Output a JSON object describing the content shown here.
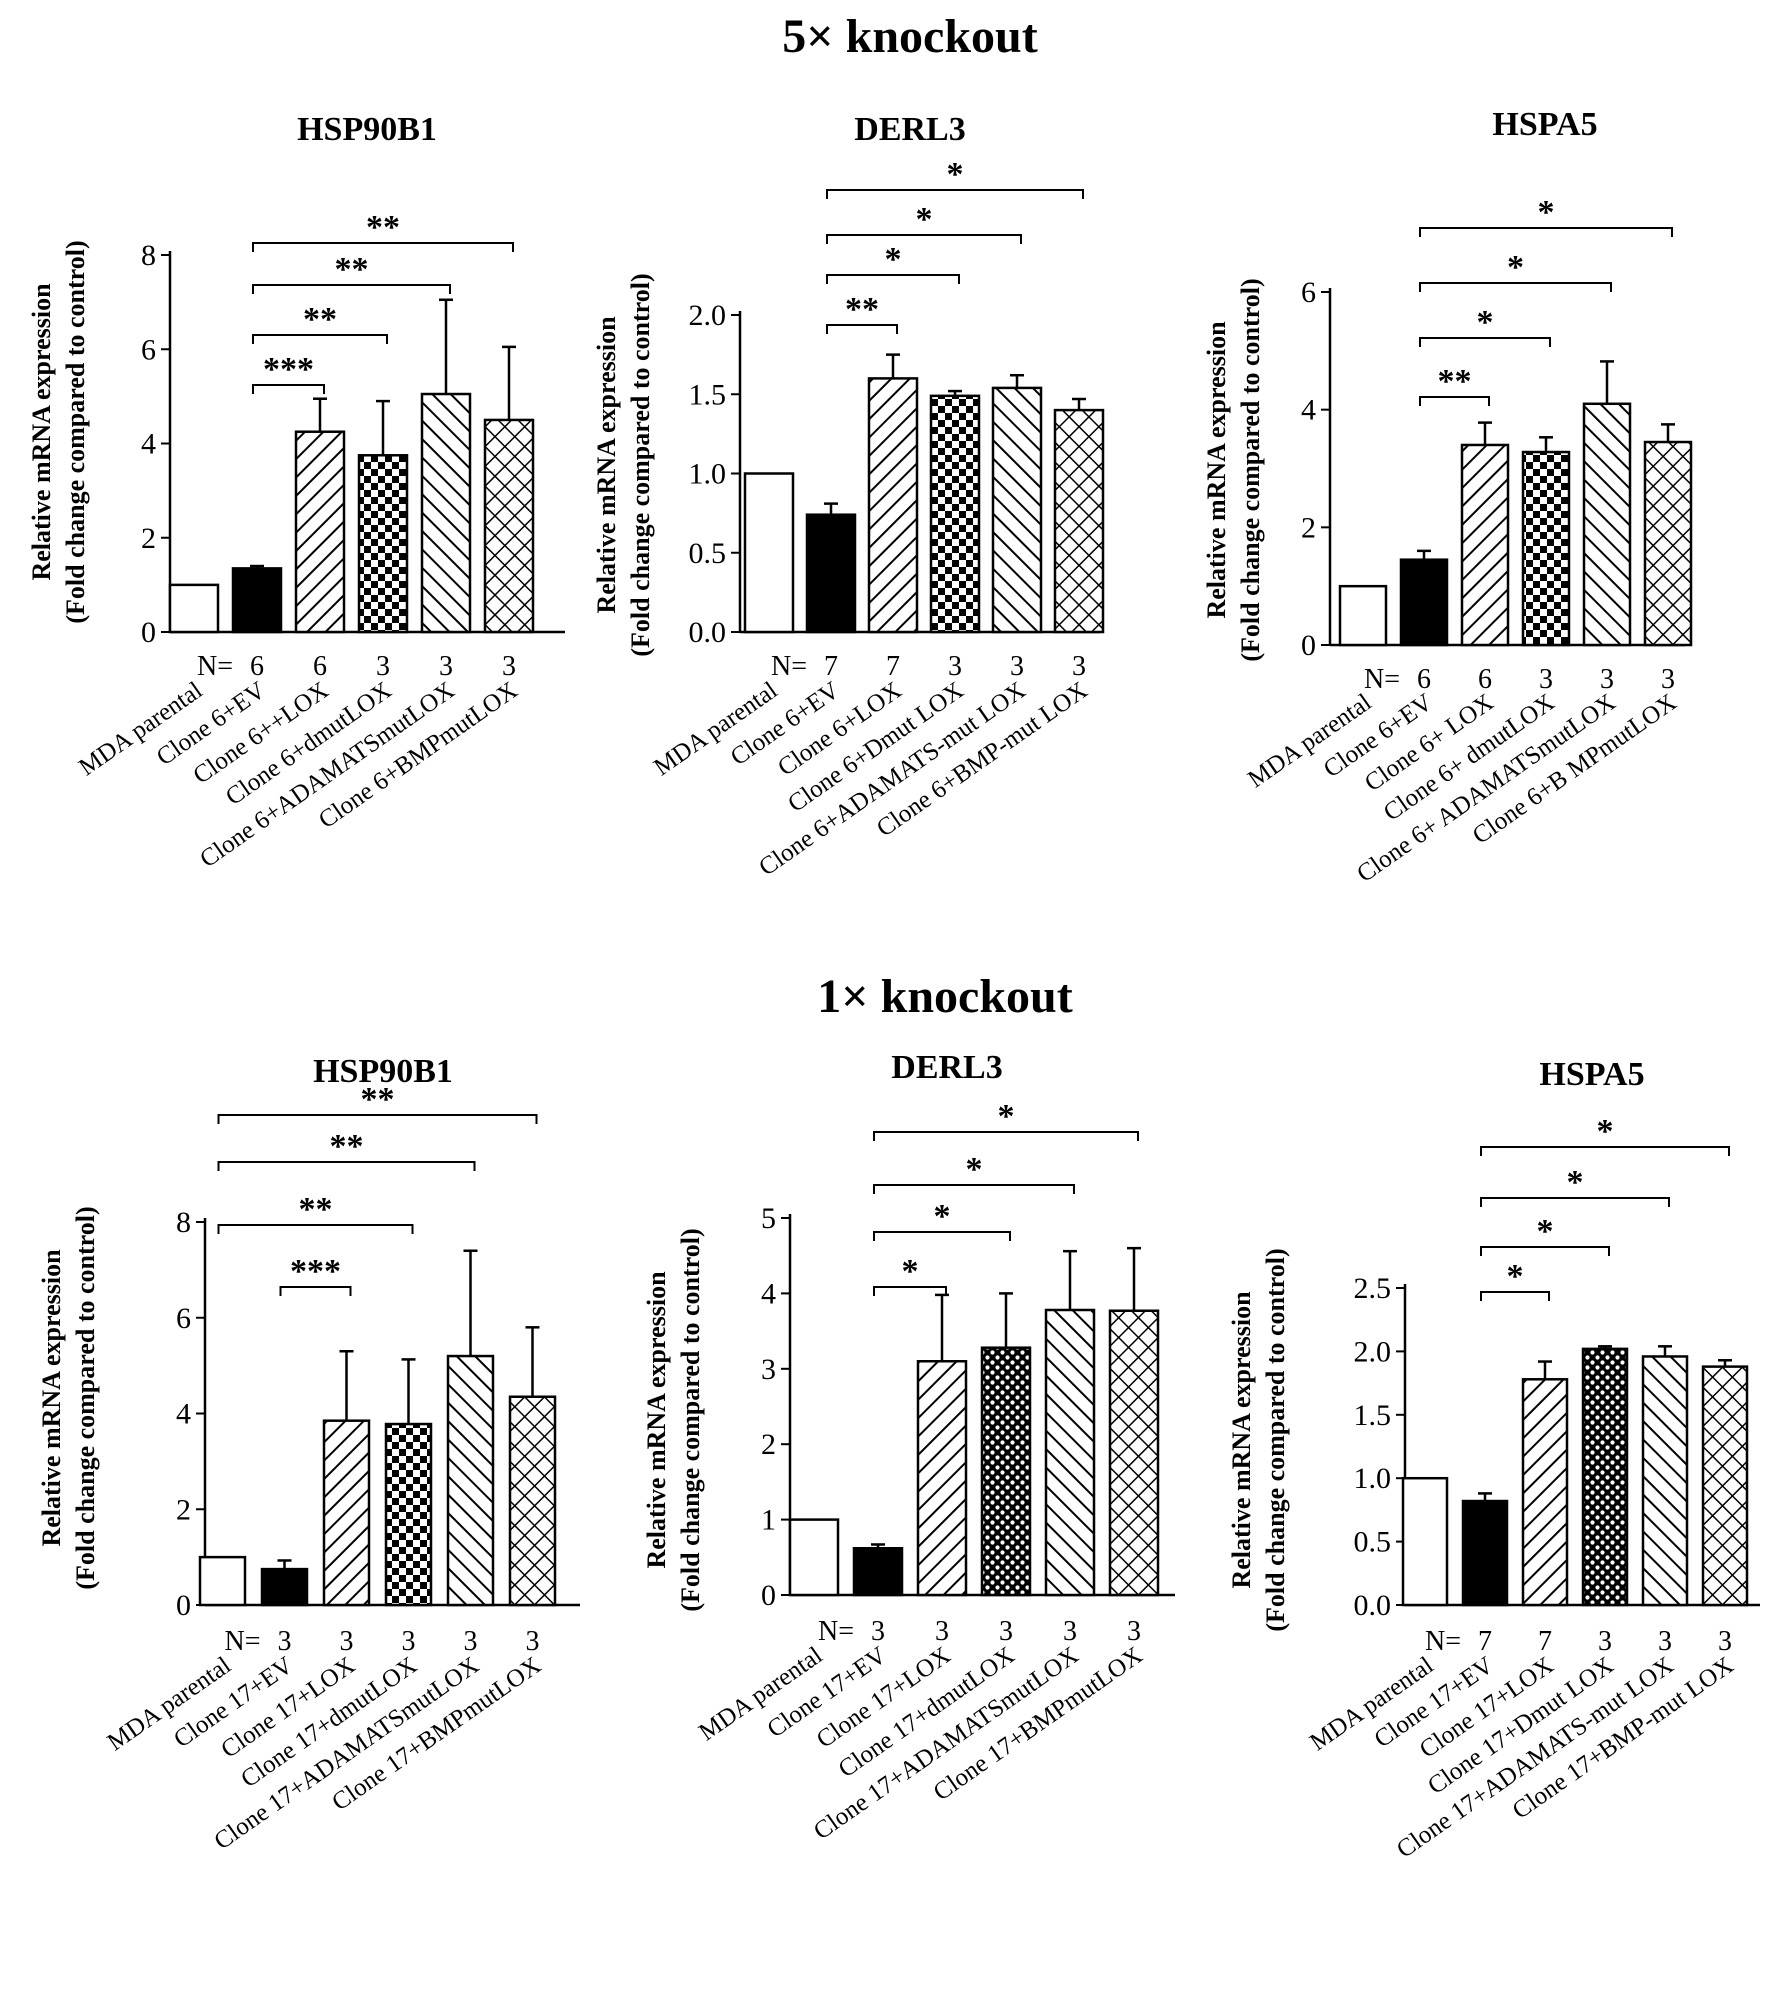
{
  "figure": {
    "section_titles": [
      "5× knockout",
      "1× knockout"
    ],
    "n_prefix": "N= ",
    "ylabel_line1": "Relative mRNA expression",
    "ylabel_line2": "(Fold change compared to control)"
  },
  "chart_data": [
    {
      "type": "bar",
      "section": "5× knockout",
      "title": "HSP90B1",
      "categories": [
        "MDA parental",
        "Clone 6+EV",
        "Clone 6++LOX",
        "Clone 6+dmutLOX",
        "Clone 6+ADAMATSmutLOX",
        "Clone 6+BMPmutLOX"
      ],
      "values": [
        1.0,
        1.35,
        4.25,
        3.75,
        5.05,
        4.5
      ],
      "errors": [
        0,
        0.05,
        0.7,
        1.15,
        2.0,
        1.55
      ],
      "patterns": [
        "open",
        "solid",
        "diag",
        "check",
        "backdiag",
        "cross"
      ],
      "n": [
        "6",
        "6",
        "3",
        "3",
        "3"
      ],
      "ylim": [
        0,
        8
      ],
      "yticks": [
        "0",
        "2",
        "4",
        "6",
        "8"
      ],
      "ylabel": "Relative mRNA expression (Fold change compared to control)",
      "significance": [
        {
          "from": 1,
          "to": 2,
          "label": "***"
        },
        {
          "from": 1,
          "to": 3,
          "label": "**"
        },
        {
          "from": 1,
          "to": 4,
          "label": "**"
        },
        {
          "from": 1,
          "to": 5,
          "label": "**"
        }
      ]
    },
    {
      "type": "bar",
      "section": "5× knockout",
      "title": "DERL3",
      "categories": [
        "MDA parental",
        "Clone 6+EV",
        "Clone 6+LOX",
        "Clone 6+Dmut LOX",
        "Clone 6+ADAMATS-mut LOX",
        "Clone 6+BMP-mut LOX"
      ],
      "values": [
        1.0,
        0.74,
        1.6,
        1.49,
        1.54,
        1.4
      ],
      "errors": [
        0,
        0.07,
        0.15,
        0.03,
        0.08,
        0.07
      ],
      "patterns": [
        "open",
        "solid",
        "diag",
        "check",
        "backdiag",
        "cross"
      ],
      "n": [
        "7",
        "7",
        "3",
        "3",
        "3"
      ],
      "ylim": [
        0,
        2.0
      ],
      "yticks": [
        "0.0",
        "0.5",
        "1.0",
        "1.5",
        "2.0"
      ],
      "ylabel": "Relative mRNA expression (Fold change compared to control)",
      "significance": [
        {
          "from": 1,
          "to": 2,
          "label": "**"
        },
        {
          "from": 1,
          "to": 3,
          "label": "*"
        },
        {
          "from": 1,
          "to": 4,
          "label": "*"
        },
        {
          "from": 1,
          "to": 5,
          "label": "*"
        }
      ]
    },
    {
      "type": "bar",
      "section": "5× knockout",
      "title": "HSPA5",
      "categories": [
        "MDA parental",
        "Clone 6+EV",
        "Clone 6+ LOX",
        "Clone 6+ dmutLOX",
        "Clone 6+ ADAMATSmutLOX",
        "Clone 6+B MPmutLOX"
      ],
      "values": [
        1.0,
        1.45,
        3.4,
        3.28,
        4.1,
        3.45
      ],
      "errors": [
        0,
        0.15,
        0.38,
        0.25,
        0.72,
        0.3
      ],
      "patterns": [
        "open",
        "solid",
        "diag",
        "check",
        "backdiag",
        "cross"
      ],
      "n": [
        "6",
        "6",
        "3",
        "3",
        "3"
      ],
      "ylim": [
        0,
        6
      ],
      "yticks": [
        "0",
        "2",
        "4",
        "6"
      ],
      "ylabel": "Relative mRNA expression (Fold change compared to control)",
      "significance": [
        {
          "from": 1,
          "to": 2,
          "label": "**"
        },
        {
          "from": 1,
          "to": 3,
          "label": "*"
        },
        {
          "from": 1,
          "to": 4,
          "label": "*"
        },
        {
          "from": 1,
          "to": 5,
          "label": "*"
        }
      ]
    },
    {
      "type": "bar",
      "section": "1× knockout",
      "title": "HSP90B1",
      "categories": [
        "MDA parental",
        "Clone 17+EV",
        "Clone 17+LOX",
        "Clone 17+dmutLOX",
        "Clone 17+ADAMATSmutLOX",
        "Clone 17+BMPmutLOX"
      ],
      "values": [
        1.0,
        0.75,
        3.85,
        3.78,
        5.2,
        4.35
      ],
      "errors": [
        0,
        0.18,
        1.45,
        1.35,
        2.2,
        1.45
      ],
      "patterns": [
        "open",
        "solid",
        "diag",
        "check",
        "backdiag",
        "cross"
      ],
      "n": [
        "3",
        "3",
        "3",
        "3",
        "3"
      ],
      "ylim": [
        0,
        8
      ],
      "yticks": [
        "0",
        "2",
        "4",
        "6",
        "8"
      ],
      "ylabel": "Relative mRNA expression (Fold change compared to control)",
      "significance": [
        {
          "from": 1,
          "to": 2,
          "label": "***"
        },
        {
          "from": 0,
          "to": 3,
          "label": "**"
        },
        {
          "from": 0,
          "to": 4,
          "label": "**"
        },
        {
          "from": 0,
          "to": 5,
          "label": "**"
        }
      ]
    },
    {
      "type": "bar",
      "section": "1× knockout",
      "title": "DERL3",
      "categories": [
        "MDA parental",
        "Clone 17+EV",
        "Clone 17+LOX",
        "Clone 17+dmutLOX",
        "Clone 17+ADAMATSmutLOX",
        "Clone 17+BMPmutLOX"
      ],
      "values": [
        1.0,
        0.62,
        3.1,
        3.28,
        3.78,
        3.77
      ],
      "errors": [
        0,
        0.05,
        0.88,
        0.72,
        0.78,
        0.83
      ],
      "patterns": [
        "open",
        "solid",
        "diag",
        "dots",
        "backdiag",
        "cross"
      ],
      "n": [
        "3",
        "3",
        "3",
        "3",
        "3"
      ],
      "ylim": [
        0,
        5
      ],
      "yticks": [
        "0",
        "1",
        "2",
        "3",
        "4",
        "5"
      ],
      "ylabel": "Relative mRNA expression (Fold change compared to control)",
      "significance": [
        {
          "from": 1,
          "to": 2,
          "label": "*"
        },
        {
          "from": 1,
          "to": 3,
          "label": "*"
        },
        {
          "from": 1,
          "to": 4,
          "label": "*"
        },
        {
          "from": 1,
          "to": 5,
          "label": "*"
        }
      ]
    },
    {
      "type": "bar",
      "section": "1× knockout",
      "title": "HSPA5",
      "categories": [
        "MDA parental",
        "Clone 17+EV",
        "Clone 17+LOX",
        "Clone 17+Dmut LOX",
        "Clone 17+ADAMATS-mut LOX",
        "Clone 17+BMP-mut LOX"
      ],
      "values": [
        1.0,
        0.82,
        1.78,
        2.02,
        1.96,
        1.88
      ],
      "errors": [
        0,
        0.06,
        0.14,
        0.02,
        0.08,
        0.05
      ],
      "patterns": [
        "open",
        "solid",
        "diag",
        "dots",
        "backdiag",
        "cross"
      ],
      "n": [
        "7",
        "7",
        "3",
        "3",
        "3"
      ],
      "ylim": [
        0,
        2.5
      ],
      "yticks": [
        "0.0",
        "0.5",
        "1.0",
        "1.5",
        "2.0",
        "2.5"
      ],
      "ylabel": "Relative mRNA expression (Fold change compared to control)",
      "significance": [
        {
          "from": 1,
          "to": 2,
          "label": "*"
        },
        {
          "from": 1,
          "to": 3,
          "label": "*"
        },
        {
          "from": 1,
          "to": 4,
          "label": "*"
        },
        {
          "from": 1,
          "to": 5,
          "label": "*"
        }
      ]
    }
  ]
}
